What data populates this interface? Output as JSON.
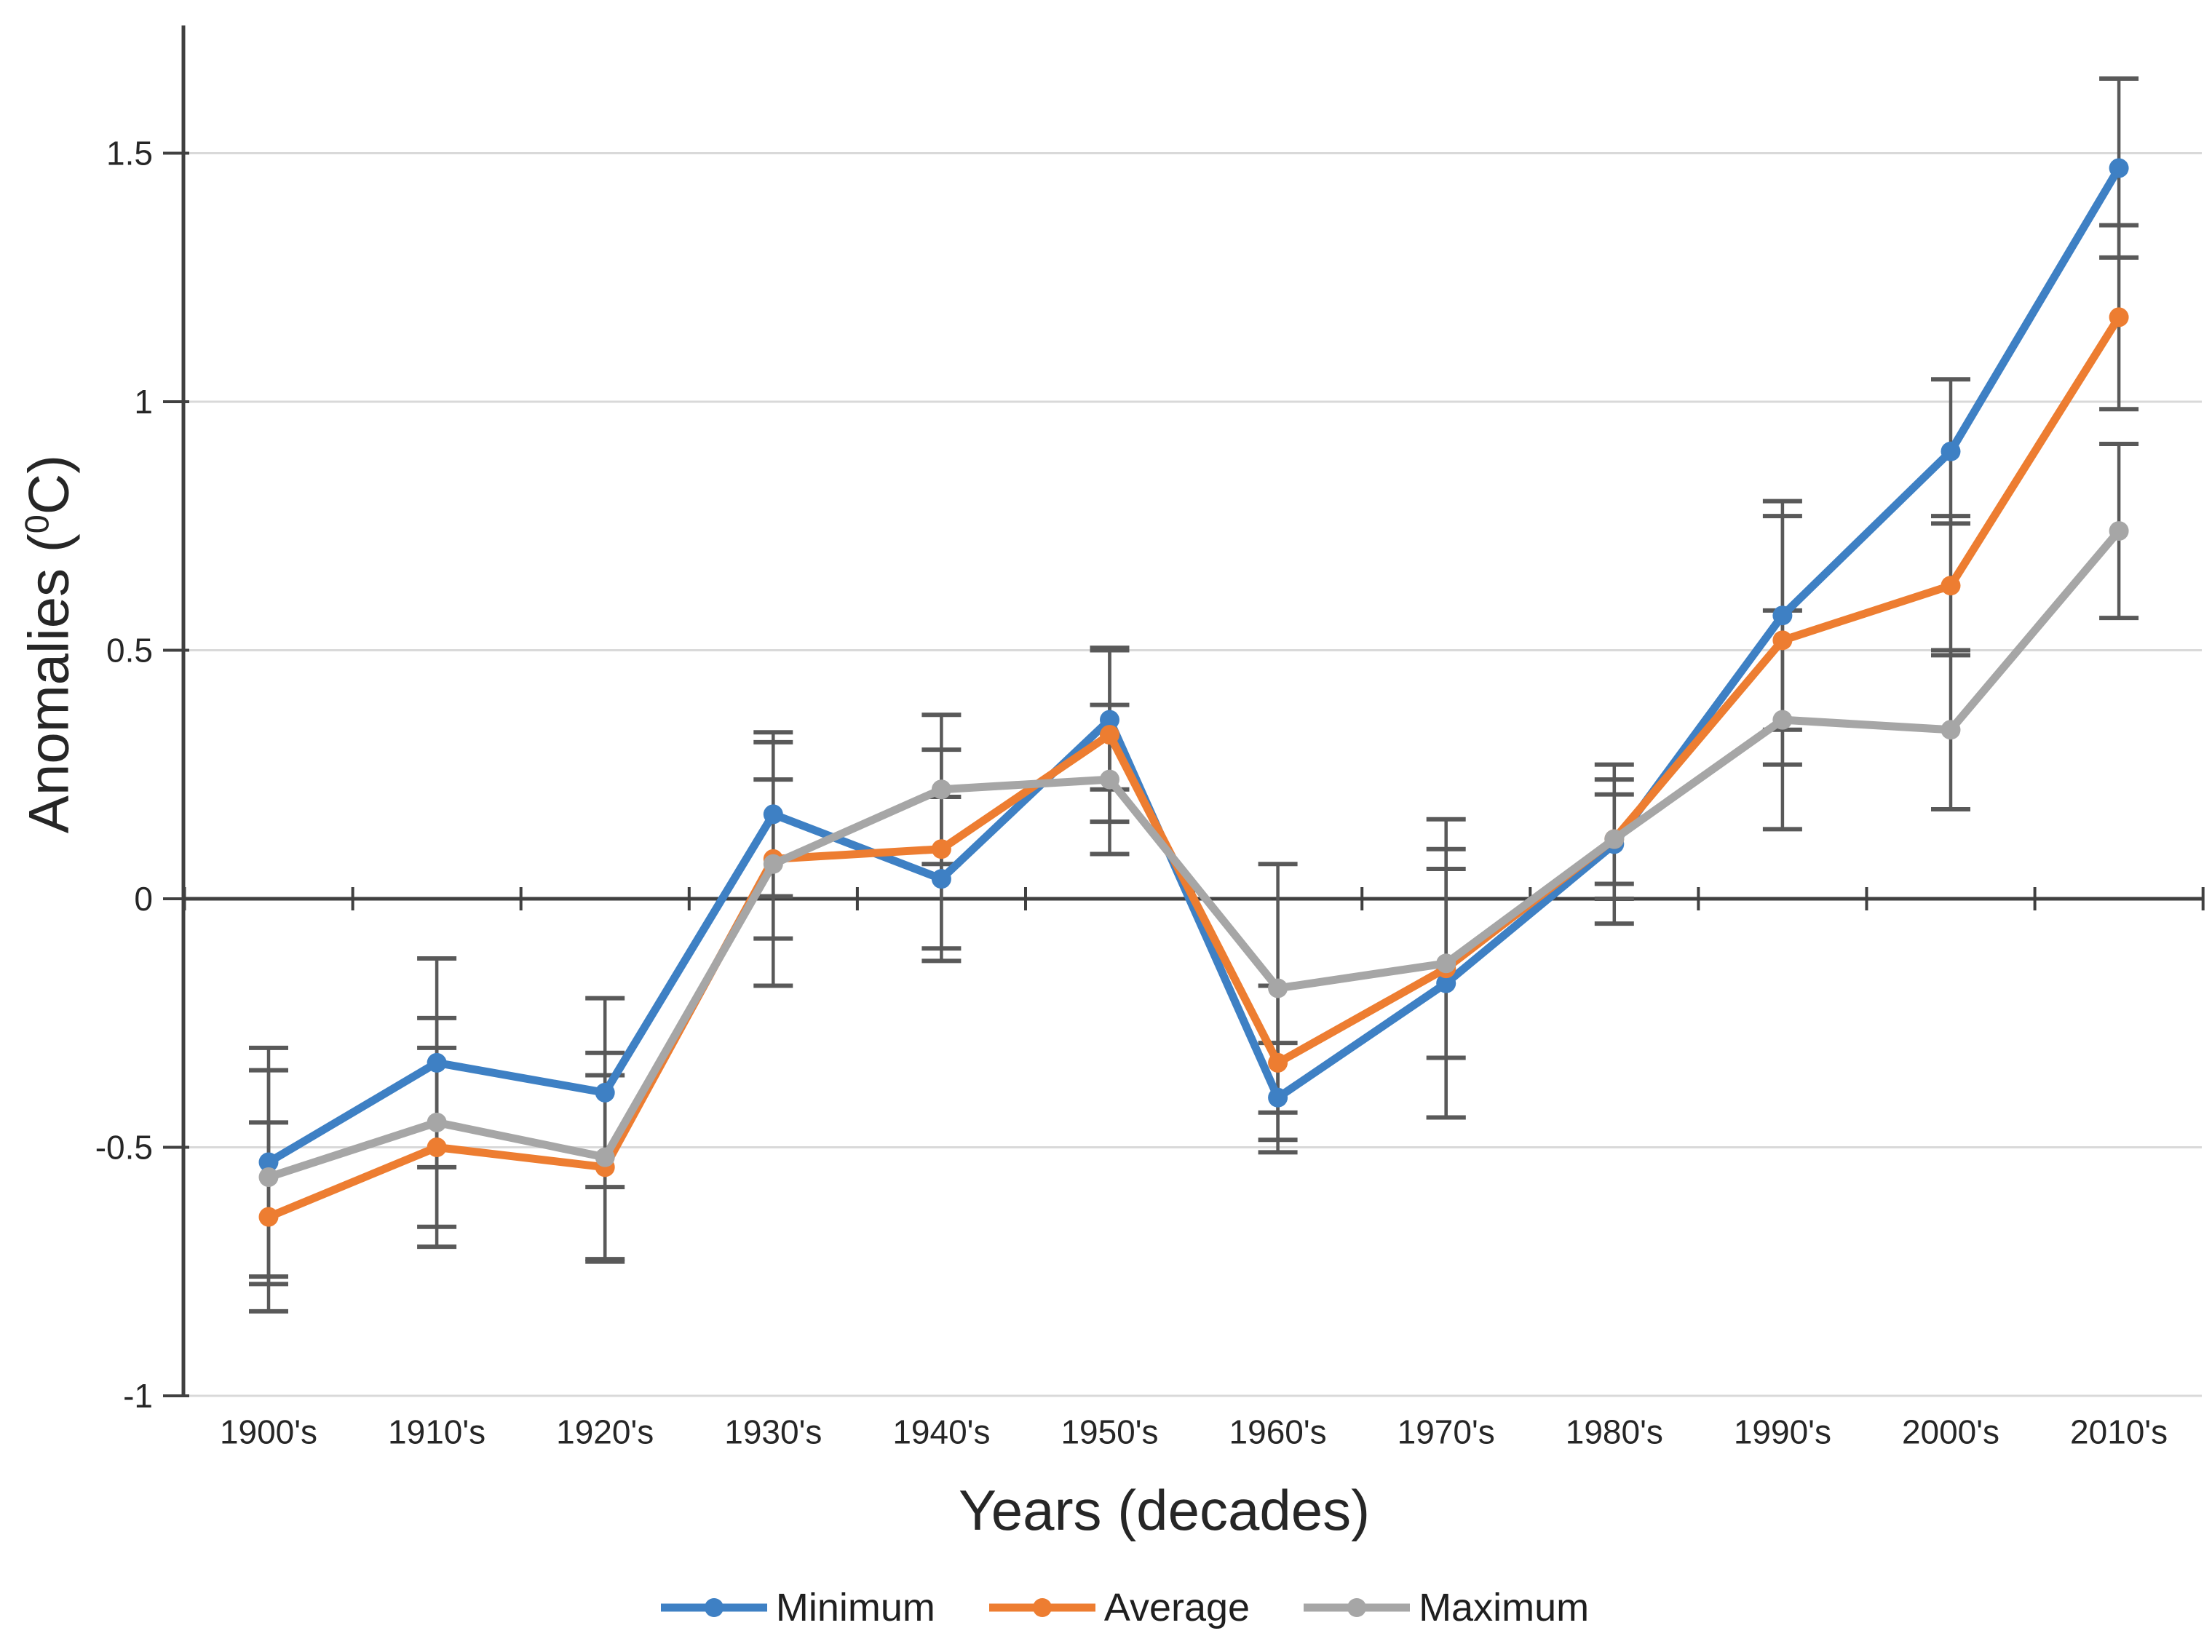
{
  "chart_data": {
    "type": "line",
    "title": "",
    "xlabel": "Years (decades)",
    "ylabel": "Anomalies (⁰C)",
    "ylabel_parts": {
      "pre": "Anomalies (",
      "sup": "0",
      "post": "C)"
    },
    "categories": [
      "1900's",
      "1910's",
      "1920's",
      "1930's",
      "1940's",
      "1950's",
      "1960's",
      "1970's",
      "1980's",
      "1990's",
      "2000's",
      "2010's"
    ],
    "y_ticks": [
      -1,
      -0.5,
      0,
      0.5,
      1,
      1.5
    ],
    "y_tick_labels": [
      "-1",
      "-0.5",
      "0",
      "0.5",
      "1",
      "1.5"
    ],
    "ylim": [
      -1,
      1.76
    ],
    "grid": true,
    "legend_position": "bottom",
    "error_bar_color": "#595959",
    "grid_color": "#D9D9D9",
    "axis_color": "#404040",
    "series": [
      {
        "name": "Minimum",
        "color": "#3E80C4",
        "values": [
          -0.53,
          -0.33,
          -0.39,
          0.17,
          0.04,
          0.36,
          -0.4,
          -0.17,
          0.11,
          0.57,
          0.9,
          1.47
        ],
        "errors": [
          0.23,
          0.21,
          0.19,
          0.165,
          0.165,
          0.14,
          0.11,
          0.27,
          0.16,
          0.23,
          0.145,
          0.18
        ]
      },
      {
        "name": "Average",
        "color": "#ED7D31",
        "values": [
          -0.64,
          -0.5,
          -0.54,
          0.08,
          0.1,
          0.33,
          -0.33,
          -0.14,
          0.12,
          0.52,
          0.63,
          1.17
        ],
        "errors": [
          0.19,
          0.2,
          0.185,
          0.16,
          0.2,
          0.175,
          0.155,
          0.3,
          0.12,
          0.25,
          0.14,
          0.185
        ]
      },
      {
        "name": "Maximum",
        "color": "#A6A6A6",
        "values": [
          -0.56,
          -0.45,
          -0.52,
          0.07,
          0.22,
          0.24,
          -0.18,
          -0.13,
          0.12,
          0.36,
          0.34,
          0.74
        ],
        "errors": [
          0.215,
          0.21,
          0.21,
          0.245,
          0.15,
          0.15,
          0.25,
          0.19,
          0.09,
          0.22,
          0.16,
          0.175
        ]
      }
    ]
  }
}
